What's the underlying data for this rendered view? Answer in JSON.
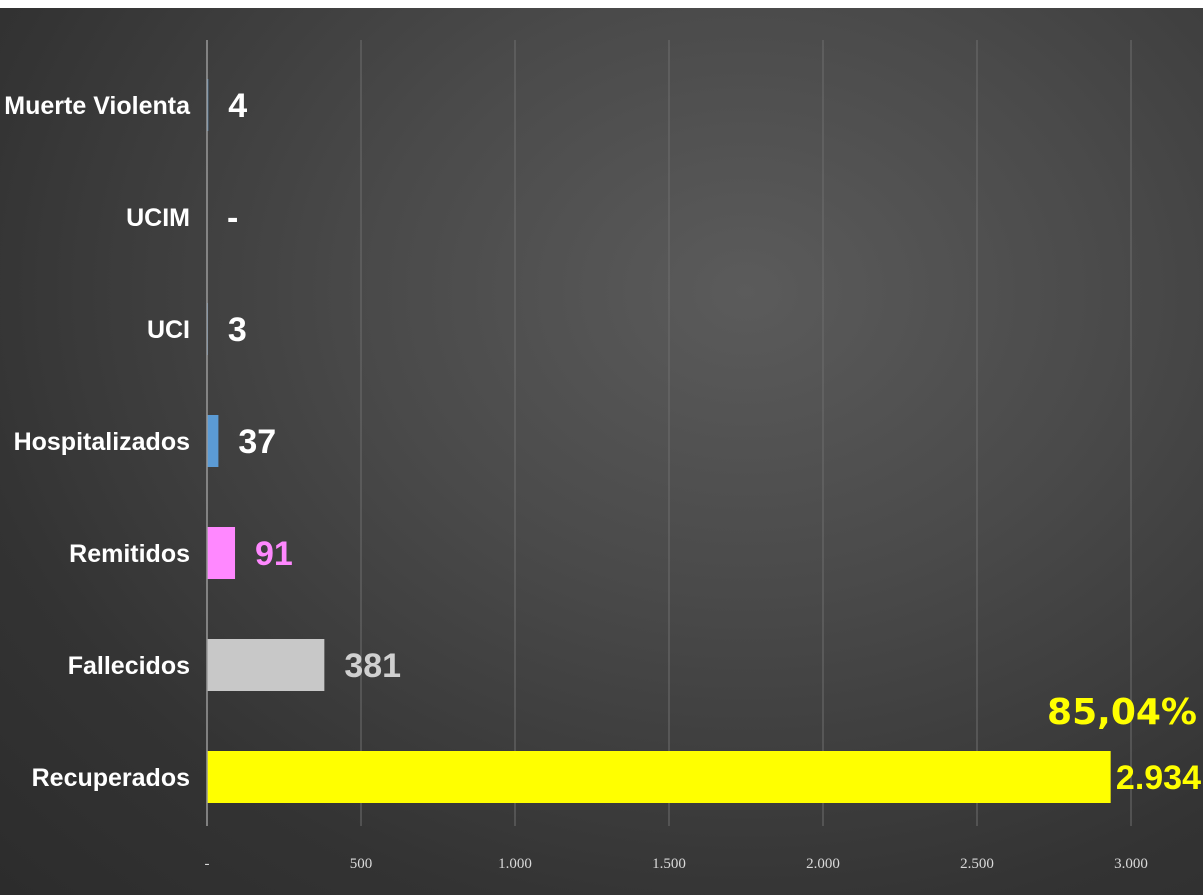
{
  "chart_data": {
    "type": "bar",
    "orientation": "horizontal",
    "categories": [
      "Muerte Violenta",
      "UCIM",
      "UCI",
      "Hospitalizados",
      "Remitidos",
      "Fallecidos",
      "Recuperados"
    ],
    "values": [
      4,
      0,
      3,
      37,
      91,
      381,
      2934
    ],
    "value_labels": [
      "4",
      "-",
      "3",
      "37",
      "91",
      "381",
      "2.934"
    ],
    "colors": [
      "#5b9bd5",
      "#5b9bd5",
      "#5b9bd5",
      "#5b9bd5",
      "#ff88ff",
      "#c8c8c8",
      "#ffff00"
    ],
    "label_colors": [
      "#ffffff",
      "#ffffff",
      "#ffffff",
      "#ffffff",
      "#ff88ff",
      "#d0d0d0",
      "#ffff00"
    ],
    "x_ticks": [
      0,
      500,
      1000,
      1500,
      2000,
      2500,
      3000
    ],
    "x_tick_labels": [
      "-",
      "500",
      "1.000",
      "1.500",
      "2.000",
      "2.500",
      "3.000"
    ],
    "xlim": [
      0,
      3000
    ],
    "grid": true,
    "annotation": "85,04%",
    "title": "",
    "xlabel": "",
    "ylabel": ""
  }
}
